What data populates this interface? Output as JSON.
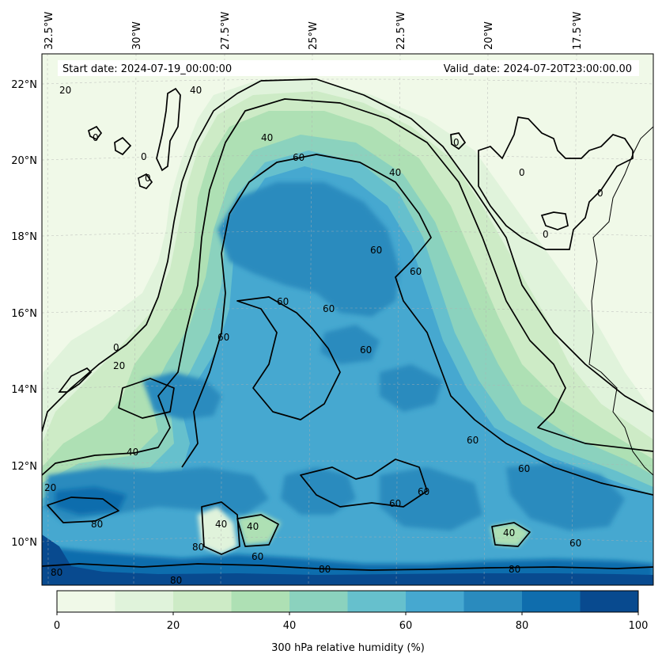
{
  "map": {
    "start_date": "Start date: 2024-07-19_00:00:00",
    "valid_date": "Valid_date: 2024-07-20T23:00:00.00",
    "lon_labels": [
      "32.5°W",
      "30°W",
      "27.5°W",
      "25°W",
      "22.5°W",
      "20°W",
      "17.5°W"
    ],
    "lat_labels": [
      "22°N",
      "20°N",
      "18°N",
      "16°N",
      "14°N",
      "12°N",
      "10°N"
    ],
    "contour_labels": [
      "20",
      "40",
      "0",
      "0",
      "0",
      "40",
      "60",
      "40",
      "0",
      "0",
      "0",
      "60",
      "60",
      "60",
      "60",
      "60",
      "20",
      "0",
      "0",
      "60",
      "60",
      "40",
      "20",
      "60",
      "60",
      "60",
      "80",
      "40",
      "40",
      "80",
      "60",
      "80",
      "80",
      "80",
      "80",
      "40",
      "60"
    ]
  },
  "colorbar": {
    "title": "300 hPa relative humidity (%)",
    "ticks": [
      "0",
      "20",
      "40",
      "60",
      "80",
      "100"
    ],
    "levels": [
      0,
      10,
      20,
      30,
      40,
      50,
      60,
      70,
      80,
      90,
      100
    ],
    "colors": [
      "#f0f9e8",
      "#e0f3db",
      "#cdebc6",
      "#aee0b4",
      "#8bd2be",
      "#66c0cd",
      "#46a8d0",
      "#2a8bbe",
      "#0f6dad",
      "#084a8f"
    ]
  }
}
